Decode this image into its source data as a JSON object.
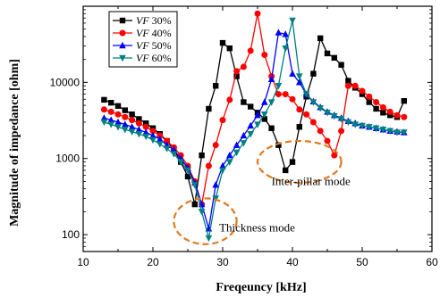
{
  "chart_data": {
    "type": "line",
    "xlabel": "Freqeuncy [kHz]",
    "ylabel": "Magnitude of impedance [ohm]",
    "xlim": [
      10,
      60
    ],
    "ylim": [
      60,
      100000
    ],
    "y_scale": "log",
    "x_ticks": [
      "10",
      "20",
      "30",
      "40",
      "50",
      "60"
    ],
    "y_ticks": [
      "100",
      "1000",
      "10000"
    ],
    "grid": false,
    "legend_position": "top-left",
    "series": [
      {
        "name_prefix": "VF",
        "name_suffix": " 30%",
        "color": "#000000",
        "marker": "square",
        "x": [
          13,
          14,
          15,
          16,
          17,
          18,
          19,
          20,
          21,
          22,
          23,
          24,
          25,
          26,
          27,
          28,
          29,
          30,
          31,
          32,
          33,
          34,
          35,
          36,
          37,
          38,
          39,
          40,
          41,
          42,
          43,
          44,
          45,
          46,
          47,
          48,
          49,
          50,
          51,
          52,
          53,
          54,
          55,
          56
        ],
        "y": [
          5900,
          5400,
          4900,
          4300,
          3800,
          3300,
          2900,
          2500,
          2100,
          1700,
          1300,
          900,
          580,
          250,
          1100,
          4500,
          9000,
          33000,
          28000,
          12000,
          5500,
          4800,
          4000,
          3300,
          2500,
          1500,
          700,
          900,
          2600,
          6500,
          13000,
          38000,
          24000,
          21000,
          17000,
          10500,
          8500,
          7000,
          5500,
          4500,
          4000,
          3700,
          3500,
          5700
        ]
      },
      {
        "name_prefix": "VF",
        "name_suffix": " 40%",
        "color": "#ff0000",
        "marker": "circle",
        "x": [
          13,
          14,
          15,
          16,
          17,
          18,
          19,
          20,
          21,
          22,
          23,
          24,
          25,
          26,
          27,
          28,
          29,
          30,
          31,
          32,
          33,
          34,
          35,
          36,
          37,
          38,
          39,
          40,
          41,
          42,
          43,
          44,
          45,
          46,
          47,
          48,
          49,
          50,
          51,
          52,
          53,
          54,
          55,
          56
        ],
        "y": [
          4400,
          4100,
          3800,
          3500,
          3200,
          2900,
          2600,
          2300,
          2000,
          1700,
          1400,
          1100,
          800,
          500,
          250,
          800,
          1500,
          3200,
          5900,
          14000,
          16000,
          26000,
          80000,
          23000,
          12000,
          7000,
          7000,
          6000,
          4400,
          3800,
          3000,
          2300,
          1700,
          1100,
          2300,
          9000,
          9000,
          7700,
          6500,
          5500,
          4700,
          4100,
          3700,
          3500
        ]
      },
      {
        "name_prefix": "VF",
        "name_suffix": " 50%",
        "color": "#0000ff",
        "marker": "triangle-up",
        "x": [
          13,
          14,
          15,
          16,
          17,
          18,
          19,
          20,
          21,
          22,
          23,
          24,
          25,
          26,
          27,
          28,
          29,
          30,
          31,
          32,
          33,
          34,
          35,
          36,
          37,
          38,
          39,
          40,
          41,
          42,
          43,
          44,
          45,
          46,
          47,
          48,
          49,
          50,
          51,
          52,
          53,
          54,
          55,
          56
        ],
        "y": [
          3400,
          3200,
          3000,
          2800,
          2600,
          2400,
          2200,
          2000,
          1800,
          1500,
          1300,
          1000,
          750,
          480,
          250,
          120,
          450,
          800,
          1100,
          1500,
          2000,
          2700,
          3700,
          5500,
          11000,
          45000,
          43000,
          13000,
          10000,
          7000,
          5600,
          4700,
          4100,
          3700,
          3400,
          3100,
          2900,
          2700,
          2600,
          2500,
          2400,
          2300,
          2250,
          2200
        ]
      },
      {
        "name_prefix": "VF",
        "name_suffix": " 60%",
        "color": "#008080",
        "marker": "triangle-down",
        "x": [
          13,
          14,
          15,
          16,
          17,
          18,
          19,
          20,
          21,
          22,
          23,
          24,
          25,
          26,
          27,
          28,
          29,
          30,
          31,
          32,
          33,
          34,
          35,
          36,
          37,
          38,
          39,
          40,
          41,
          42,
          43,
          44,
          45,
          46,
          47,
          48,
          49,
          50,
          51,
          52,
          53,
          54,
          55,
          56
        ],
        "y": [
          3000,
          2800,
          2600,
          2400,
          2250,
          2100,
          1950,
          1750,
          1550,
          1350,
          1150,
          900,
          700,
          450,
          200,
          90,
          300,
          700,
          900,
          1200,
          1600,
          2100,
          2800,
          3800,
          5500,
          9000,
          28000,
          65000,
          12000,
          7000,
          5500,
          4600,
          4000,
          3600,
          3300,
          3000,
          2800,
          2700,
          2600,
          2500,
          2400,
          2300,
          2200,
          2200
        ]
      }
    ],
    "annotations": [
      {
        "text": "Thickness mode",
        "x": 27.5,
        "y": 140,
        "rx": 4.5,
        "ry_decades": [
          75,
          300
        ],
        "label_x": 29.5,
        "label_y": 110,
        "color": "#e07a1f"
      },
      {
        "text": "Inter-pillar mode",
        "x": 41,
        "y": 900,
        "rx": 6.0,
        "ry_decades": [
          480,
          1700
        ],
        "label_x": 37.0,
        "label_y": 450,
        "color": "#e07a1f"
      }
    ]
  }
}
